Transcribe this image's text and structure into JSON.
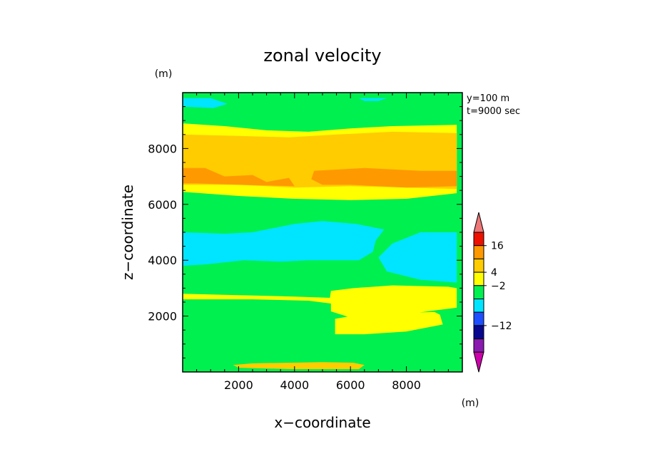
{
  "chart_data": {
    "type": "heatmap",
    "title": "zonal velocity",
    "xlabel": "x−coordinate",
    "ylabel": "z−coordinate",
    "x_unit": "(m)",
    "y_unit": "(m)",
    "annotations": [
      "y=100 m",
      "t=9000 sec"
    ],
    "xlim": [
      0,
      10000
    ],
    "ylim": [
      0,
      10000
    ],
    "x_ticks": [
      2000,
      4000,
      6000,
      8000
    ],
    "y_ticks": [
      2000,
      4000,
      6000,
      8000
    ],
    "colorbar": {
      "unit": "(m)",
      "labels": [
        {
          "level": 7,
          "text": "16"
        },
        {
          "level": 5,
          "text": "4"
        },
        {
          "level": 4,
          "text": "−2"
        },
        {
          "level": 1,
          "text": "−12"
        }
      ],
      "colors": [
        "#cc00aa",
        "#8a1ab0",
        "#08088f",
        "#1e4fff",
        "#00e5ff",
        "#00f050",
        "#ffff00",
        "#ffcc00",
        "#ff9900",
        "#ee1100",
        "#ee7777"
      ]
    },
    "contour_regions": [
      {
        "c": 5,
        "pts": [
          [
            0,
            9800
          ],
          [
            9800,
            9800
          ],
          [
            9800,
            0
          ],
          [
            0,
            0
          ]
        ]
      },
      {
        "c": 6,
        "pts": [
          [
            0,
            8900
          ],
          [
            1500,
            8800
          ],
          [
            3000,
            8650
          ],
          [
            4500,
            8600
          ],
          [
            6000,
            8720
          ],
          [
            7500,
            8800
          ],
          [
            9800,
            8850
          ],
          [
            9800,
            6400
          ],
          [
            8000,
            6200
          ],
          [
            6000,
            6150
          ],
          [
            4000,
            6200
          ],
          [
            2000,
            6300
          ],
          [
            0,
            6450
          ]
        ]
      },
      {
        "c": 7,
        "pts": [
          [
            0,
            8500
          ],
          [
            2000,
            8450
          ],
          [
            3800,
            8400
          ],
          [
            5500,
            8500
          ],
          [
            7500,
            8600
          ],
          [
            9800,
            8550
          ],
          [
            9800,
            6550
          ],
          [
            8000,
            6600
          ],
          [
            6000,
            6650
          ],
          [
            4000,
            6600
          ],
          [
            2000,
            6700
          ],
          [
            0,
            6700
          ]
        ]
      },
      {
        "c": 8,
        "pts": [
          [
            0,
            7300
          ],
          [
            800,
            7300
          ],
          [
            1500,
            7000
          ],
          [
            2500,
            7050
          ],
          [
            3000,
            6800
          ],
          [
            3800,
            6950
          ],
          [
            4000,
            6650
          ],
          [
            2000,
            6700
          ],
          [
            500,
            6750
          ],
          [
            0,
            6750
          ]
        ]
      },
      {
        "c": 8,
        "pts": [
          [
            4700,
            7200
          ],
          [
            6500,
            7300
          ],
          [
            8500,
            7200
          ],
          [
            9800,
            7200
          ],
          [
            9800,
            6650
          ],
          [
            8000,
            6600
          ],
          [
            6000,
            6700
          ],
          [
            5000,
            6700
          ],
          [
            4600,
            6900
          ]
        ]
      },
      {
        "c": 5,
        "pts": [
          [
            0,
            5900
          ],
          [
            1500,
            5550
          ],
          [
            3000,
            5500
          ],
          [
            5000,
            5700
          ],
          [
            7000,
            5750
          ],
          [
            9800,
            5950
          ],
          [
            9800,
            5100
          ],
          [
            8500,
            4900
          ],
          [
            6000,
            4800
          ],
          [
            4000,
            4900
          ],
          [
            2000,
            5050
          ],
          [
            0,
            5200
          ]
        ]
      },
      {
        "c": 4,
        "pts": [
          [
            0,
            5000
          ],
          [
            1500,
            4950
          ],
          [
            2500,
            5000
          ],
          [
            4000,
            5300
          ],
          [
            5000,
            5400
          ],
          [
            6200,
            5300
          ],
          [
            7200,
            5100
          ],
          [
            6900,
            4700
          ],
          [
            6800,
            4300
          ],
          [
            6300,
            4000
          ],
          [
            4500,
            4000
          ],
          [
            3500,
            3950
          ],
          [
            2200,
            4000
          ],
          [
            800,
            3850
          ],
          [
            0,
            3800
          ]
        ]
      },
      {
        "c": 4,
        "pts": [
          [
            7000,
            4100
          ],
          [
            7500,
            4600
          ],
          [
            8500,
            5000
          ],
          [
            9800,
            5000
          ],
          [
            9800,
            3200
          ],
          [
            8500,
            3300
          ],
          [
            7300,
            3600
          ]
        ]
      },
      {
        "c": 4,
        "pts": [
          [
            0,
            9800
          ],
          [
            1000,
            9800
          ],
          [
            1600,
            9600
          ],
          [
            1100,
            9450
          ],
          [
            0,
            9500
          ]
        ]
      },
      {
        "c": 4,
        "pts": [
          [
            6300,
            9800
          ],
          [
            7300,
            9800
          ],
          [
            7000,
            9700
          ],
          [
            6500,
            9700
          ]
        ]
      },
      {
        "c": 5,
        "pts": [
          [
            0,
            3100
          ],
          [
            1200,
            3000
          ],
          [
            2500,
            3050
          ],
          [
            4000,
            3000
          ],
          [
            5000,
            3050
          ],
          [
            6500,
            3100
          ],
          [
            8500,
            3050
          ],
          [
            9800,
            3100
          ],
          [
            9800,
            200
          ],
          [
            0,
            200
          ]
        ]
      },
      {
        "c": 6,
        "pts": [
          [
            5300,
            2900
          ],
          [
            6100,
            3000
          ],
          [
            7500,
            3100
          ],
          [
            9500,
            3050
          ],
          [
            9800,
            3000
          ],
          [
            9800,
            2300
          ],
          [
            9000,
            2200
          ],
          [
            7500,
            2000
          ],
          [
            6000,
            1950
          ],
          [
            5200,
            2200
          ]
        ]
      },
      {
        "c": 6,
        "pts": [
          [
            0,
            2800
          ],
          [
            2000,
            2750
          ],
          [
            4000,
            2700
          ],
          [
            5400,
            2650
          ],
          [
            5200,
            2300
          ],
          [
            4500,
            2250
          ],
          [
            3000,
            2200
          ],
          [
            1500,
            2300
          ],
          [
            0,
            2300
          ]
        ]
      },
      {
        "c": 5,
        "pts": [
          [
            0,
            2600
          ],
          [
            2500,
            2600
          ],
          [
            4500,
            2550
          ],
          [
            5300,
            2450
          ],
          [
            5300,
            2100
          ],
          [
            4000,
            2050
          ],
          [
            1500,
            2050
          ],
          [
            0,
            2100
          ]
        ]
      },
      {
        "c": 6,
        "pts": [
          [
            5450,
            1900
          ],
          [
            6000,
            2000
          ],
          [
            7500,
            2100
          ],
          [
            9000,
            2150
          ],
          [
            9200,
            2050
          ],
          [
            9300,
            1700
          ],
          [
            8000,
            1450
          ],
          [
            6500,
            1350
          ],
          [
            5450,
            1350
          ]
        ]
      },
      {
        "c": 7,
        "pts": [
          [
            1800,
            250
          ],
          [
            3000,
            350
          ],
          [
            4500,
            400
          ],
          [
            6000,
            350
          ],
          [
            6500,
            250
          ],
          [
            6300,
            100
          ],
          [
            4000,
            100
          ],
          [
            2000,
            150
          ]
        ]
      },
      {
        "c": 5,
        "pts": [
          [
            0,
            1000
          ],
          [
            2000,
            900
          ],
          [
            4500,
            850
          ],
          [
            6000,
            700
          ],
          [
            8000,
            800
          ],
          [
            9800,
            900
          ],
          [
            9800,
            350
          ],
          [
            8000,
            300
          ],
          [
            5000,
            350
          ],
          [
            2000,
            300
          ],
          [
            0,
            350
          ]
        ]
      },
      {
        "c": 4,
        "pts": [
          [
            5300,
            4750
          ],
          [
            5500,
            4850
          ],
          [
            5600,
            4700
          ],
          [
            5400,
            4600
          ]
        ]
      }
    ]
  }
}
